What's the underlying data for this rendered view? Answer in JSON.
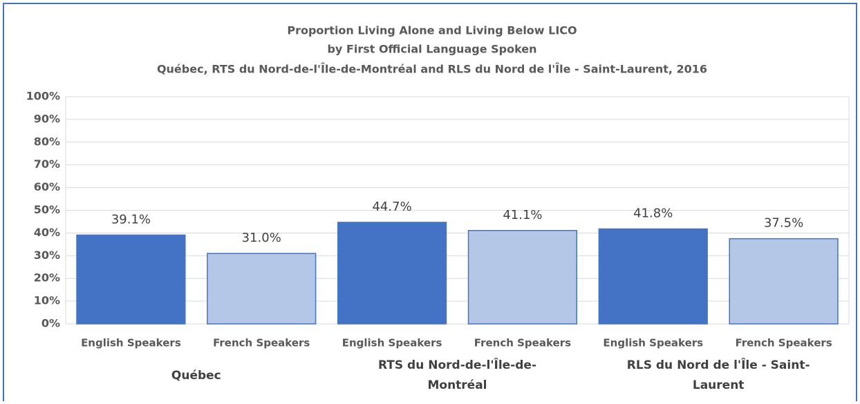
{
  "chart_data": {
    "type": "bar",
    "title": [
      "Proportion Living Alone and Living Below LICO",
      "by First Official Language Spoken",
      "Québec, RTS du Nord-de-l'Île-de-Montréal and RLS du Nord de l'Île - Saint-Laurent, 2016"
    ],
    "categories": [
      "Québec",
      "RTS du Nord-de-l'Île-de-Montréal",
      "RLS du Nord de l'Île - Saint-Laurent"
    ],
    "series": [
      {
        "name": "English Speakers",
        "color": "#4472c4",
        "values": [
          39.1,
          44.7,
          41.8
        ],
        "value_labels": [
          "39.1%",
          "44.7%",
          "41.8%"
        ]
      },
      {
        "name": "French Speakers",
        "color": "#b4c7e7",
        "values": [
          31.0,
          41.1,
          37.5
        ],
        "value_labels": [
          "31.0%",
          "41.1%",
          "37.5%"
        ]
      }
    ],
    "ylim": [
      0,
      100
    ],
    "yticks": [
      {
        "value": 0,
        "label": "0%"
      },
      {
        "value": 10,
        "label": "10%"
      },
      {
        "value": 20,
        "label": "20%"
      },
      {
        "value": 30,
        "label": "30%"
      },
      {
        "value": 40,
        "label": "40%"
      },
      {
        "value": 50,
        "label": "50%"
      },
      {
        "value": 60,
        "label": "60%"
      },
      {
        "value": 70,
        "label": "70%"
      },
      {
        "value": 80,
        "label": "80%"
      },
      {
        "value": 90,
        "label": "90%"
      },
      {
        "value": 100,
        "label": "100%"
      }
    ],
    "grid": true
  }
}
